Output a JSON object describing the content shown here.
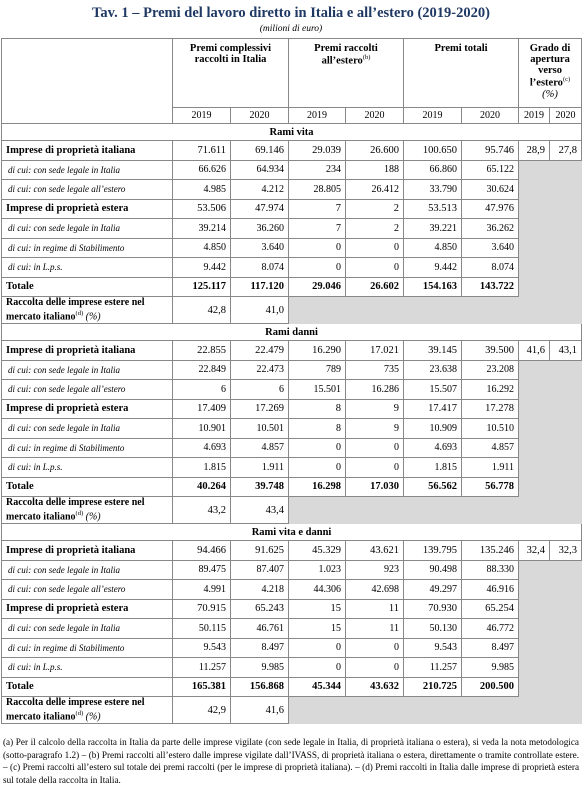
{
  "title": "Tav. 1 – Premi del lavoro diretto in Italia e all’estero (2019-2020)",
  "subtitle": "(milioni di euro)",
  "header": {
    "col1": "Premi complessivi raccolti in Italia",
    "col2": {
      "text": "Premi raccolti all’estero",
      "sup": "(b)"
    },
    "col3": "Premi totali",
    "col4": {
      "text": "Grado di apertura verso l’estero",
      "sup": "(c)",
      "unit": "(%)"
    },
    "years": [
      "2019",
      "2020",
      "2019",
      "2020",
      "2019",
      "2020",
      "2019",
      "2020"
    ]
  },
  "sections": [
    {
      "name": "Rami vita",
      "rows": [
        {
          "label": "Imprese di proprietà italiana",
          "values": [
            "71.611",
            "69.146",
            "29.039",
            "26.600",
            "100.650",
            "95.746",
            "28,9",
            "27,8"
          ],
          "sub": [
            {
              "label": "di cui: con sede legale in Italia",
              "values": [
                "66.626",
                "64.934",
                "234",
                "188",
                "66.860",
                "65.122"
              ]
            },
            {
              "label": "di cui: con sede legale all’estero",
              "values": [
                "4.985",
                "4.212",
                "28.805",
                "26.412",
                "33.790",
                "30.624"
              ]
            }
          ]
        },
        {
          "label": "Imprese di proprietà estera",
          "values": [
            "53.506",
            "47.974",
            "7",
            "2",
            "53.513",
            "47.976"
          ],
          "sub": [
            {
              "label": "di cui: con sede legale in Italia",
              "values": [
                "39.214",
                "36.260",
                "7",
                "2",
                "39.221",
                "36.262"
              ]
            },
            {
              "label": "di cui: in regime di Stabilimento",
              "values": [
                "4.850",
                "3.640",
                "0",
                "0",
                "4.850",
                "3.640"
              ]
            },
            {
              "label": "di cui: in L.p.s.",
              "values": [
                "9.442",
                "8.074",
                "0",
                "0",
                "9.442",
                "8.074"
              ]
            }
          ]
        }
      ],
      "total": {
        "label": "Totale",
        "values": [
          "125.117",
          "117.120",
          "29.046",
          "26.602",
          "154.163",
          "143.722"
        ]
      },
      "share": {
        "label": "Raccolta delle imprese estere nel mercato italiano",
        "sup": "(d)",
        "unit": "(%)",
        "values": [
          "42,8",
          "41,0"
        ]
      }
    },
    {
      "name": "Rami danni",
      "rows": [
        {
          "label": "Imprese di proprietà italiana",
          "values": [
            "22.855",
            "22.479",
            "16.290",
            "17.021",
            "39.145",
            "39.500",
            "41,6",
            "43,1"
          ],
          "sub": [
            {
              "label": "di cui: con sede legale in Italia",
              "values": [
                "22.849",
                "22.473",
                "789",
                "735",
                "23.638",
                "23.208"
              ]
            },
            {
              "label": "di cui: con sede legale all’estero",
              "values": [
                "6",
                "6",
                "15.501",
                "16.286",
                "15.507",
                "16.292"
              ]
            }
          ]
        },
        {
          "label": "Imprese di proprietà estera",
          "values": [
            "17.409",
            "17.269",
            "8",
            "9",
            "17.417",
            "17.278"
          ],
          "sub": [
            {
              "label": "di cui: con sede legale in Italia",
              "values": [
                "10.901",
                "10.501",
                "8",
                "9",
                "10.909",
                "10.510"
              ]
            },
            {
              "label": "di cui: in regime di Stabilimento",
              "values": [
                "4.693",
                "4.857",
                "0",
                "0",
                "4.693",
                "4.857"
              ]
            },
            {
              "label": "di cui: in L.p.s.",
              "values": [
                "1.815",
                "1.911",
                "0",
                "0",
                "1.815",
                "1.911"
              ]
            }
          ]
        }
      ],
      "total": {
        "label": "Totale",
        "values": [
          "40.264",
          "39.748",
          "16.298",
          "17.030",
          "56.562",
          "56.778"
        ]
      },
      "share": {
        "label": "Raccolta delle imprese estere nel mercato italiano",
        "sup": "(d)",
        "unit": "(%)",
        "values": [
          "43,2",
          "43,4"
        ]
      }
    },
    {
      "name": "Rami vita e danni",
      "rows": [
        {
          "label": "Imprese di proprietà italiana",
          "values": [
            "94.466",
            "91.625",
            "45.329",
            "43.621",
            "139.795",
            "135.246",
            "32,4",
            "32,3"
          ],
          "sub": [
            {
              "label": "di cui: con sede legale in Italia",
              "values": [
                "89.475",
                "87.407",
                "1.023",
                "923",
                "90.498",
                "88.330"
              ]
            },
            {
              "label": "di cui: con sede legale all’estero",
              "values": [
                "4.991",
                "4.218",
                "44.306",
                "42.698",
                "49.297",
                "46.916"
              ]
            }
          ]
        },
        {
          "label": "Imprese di proprietà estera",
          "values": [
            "70.915",
            "65.243",
            "15",
            "11",
            "70.930",
            "65.254"
          ],
          "sub": [
            {
              "label": "di cui: con sede legale in Italia",
              "values": [
                "50.115",
                "46.761",
                "15",
                "11",
                "50.130",
                "46.772"
              ]
            },
            {
              "label": "di cui: in regime di Stabilimento",
              "values": [
                "9.543",
                "8.497",
                "0",
                "0",
                "9.543",
                "8.497"
              ]
            },
            {
              "label": "di cui: in L.p.s.",
              "values": [
                "11.257",
                "9.985",
                "0",
                "0",
                "11.257",
                "9.985"
              ]
            }
          ]
        }
      ],
      "total": {
        "label": "Totale",
        "values": [
          "165.381",
          "156.868",
          "45.344",
          "43.632",
          "210.725",
          "200.500"
        ]
      },
      "share": {
        "label": "Raccolta delle imprese estere nel mercato italiano",
        "sup": "(d)",
        "unit": "(%)",
        "values": [
          "42,9",
          "41,6"
        ]
      }
    }
  ],
  "notes": [
    "(a) Per il calcolo della raccolta in Italia da parte delle imprese vigilate (con sede legale in Italia, di proprietà italiana o estera), si veda la nota metodologica (sotto-paragrafo 1.2) –",
    "(b) Premi raccolti all’estero dalle imprese vigilate dall’IVASS, di proprietà italiana o estera, direttamente o tramite controllate estere. –",
    "(c) Premi raccolti all’estero sul totale dei premi raccolti (per le imprese di proprietà italiana). –",
    "(d) Premi raccolti in Italia dalle imprese di proprietà estera sul totale della raccolta in Italia."
  ]
}
